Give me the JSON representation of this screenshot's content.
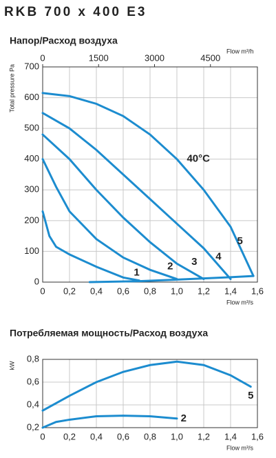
{
  "page_title": "RKB 700 x 400 E3",
  "chart_data": [
    {
      "type": "line",
      "title": "Напор/Расход воздуха",
      "xlabel": "Flow m³/s",
      "ylabel": "Total pressure Pa",
      "x2label": "Flow m³/h",
      "xlim": [
        0,
        1.6
      ],
      "xticks": [
        0,
        {
          "value": 0.2,
          "label": "0,2"
        },
        {
          "value": 0.4,
          "label": "0,4"
        },
        {
          "value": 0.6,
          "label": "0,6"
        },
        {
          "value": 0.8,
          "label": "0,8"
        },
        {
          "value": 1.0,
          "label": "1,0"
        },
        {
          "value": 1.2,
          "label": "1,2"
        },
        {
          "value": 1.4,
          "label": "1,4"
        },
        {
          "value": 1.6,
          "label": "1,6"
        }
      ],
      "x2lim": [
        0,
        5760
      ],
      "x2ticks": [
        0,
        1500,
        3000,
        4500
      ],
      "ylim": [
        0,
        700
      ],
      "yticks": [
        0,
        100,
        200,
        300,
        400,
        500,
        600,
        700
      ],
      "grid": true,
      "annotations": [
        "40°C"
      ],
      "series": [
        {
          "name": "1",
          "color": "#1c8ccf",
          "x": [
            0,
            0.05,
            0.1,
            0.2,
            0.4,
            0.6,
            0.72
          ],
          "values": [
            230,
            150,
            115,
            90,
            50,
            15,
            5
          ]
        },
        {
          "name": "2",
          "color": "#1c8ccf",
          "x": [
            0,
            0.1,
            0.2,
            0.4,
            0.6,
            0.8,
            1.0
          ],
          "values": [
            400,
            310,
            230,
            140,
            80,
            40,
            10
          ]
        },
        {
          "name": "3",
          "color": "#1c8ccf",
          "x": [
            0,
            0.2,
            0.4,
            0.6,
            0.8,
            1.0,
            1.2
          ],
          "values": [
            480,
            400,
            300,
            210,
            130,
            60,
            10
          ]
        },
        {
          "name": "4",
          "color": "#1c8ccf",
          "x": [
            0,
            0.2,
            0.4,
            0.6,
            0.8,
            1.0,
            1.2,
            1.4
          ],
          "values": [
            550,
            500,
            430,
            350,
            270,
            190,
            110,
            10
          ]
        },
        {
          "name": "5",
          "color": "#1c8ccf",
          "x": [
            0,
            0.2,
            0.4,
            0.6,
            0.8,
            1.0,
            1.2,
            1.4,
            1.57
          ],
          "values": [
            615,
            605,
            580,
            540,
            480,
            400,
            300,
            180,
            20
          ]
        },
        {
          "color": "#1c8ccf",
          "x": [
            0.35,
            0.72,
            1.0,
            1.2,
            1.4,
            1.57
          ],
          "values": [
            0,
            3,
            8,
            12,
            16,
            20
          ]
        }
      ]
    },
    {
      "type": "line",
      "title": "Потребляемая мощность/Расход воздуха",
      "xlabel": "Flow m³/s",
      "ylabel": "kW",
      "xlim": [
        0,
        1.6
      ],
      "xticks": [
        0,
        {
          "value": 0.2,
          "label": "0,2"
        },
        {
          "value": 0.4,
          "label": "0,4"
        },
        {
          "value": 0.6,
          "label": "0,6"
        },
        {
          "value": 0.8,
          "label": "0,8"
        },
        {
          "value": 1.0,
          "label": "1,0"
        },
        {
          "value": 1.2,
          "label": "1,2"
        },
        {
          "value": 1.4,
          "label": "1,4"
        },
        {
          "value": 1.6,
          "label": "1,6"
        }
      ],
      "ylim": [
        0.2,
        0.8
      ],
      "yticks": [
        {
          "value": 0.2,
          "label": "0,2"
        },
        {
          "value": 0.4,
          "label": "0,4"
        },
        {
          "value": 0.6,
          "label": "0,6"
        },
        {
          "value": 0.8,
          "label": "0,8"
        }
      ],
      "grid": true,
      "series": [
        {
          "name": "5",
          "color": "#1c8ccf",
          "x": [
            0,
            0.2,
            0.4,
            0.6,
            0.8,
            1.0,
            1.2,
            1.4,
            1.55
          ],
          "values": [
            0.35,
            0.48,
            0.6,
            0.69,
            0.75,
            0.78,
            0.75,
            0.66,
            0.56
          ]
        },
        {
          "name": "2",
          "color": "#1c8ccf",
          "x": [
            0,
            0.1,
            0.2,
            0.4,
            0.6,
            0.8,
            1.0
          ],
          "values": [
            0.2,
            0.25,
            0.27,
            0.3,
            0.305,
            0.3,
            0.28
          ]
        }
      ]
    }
  ]
}
